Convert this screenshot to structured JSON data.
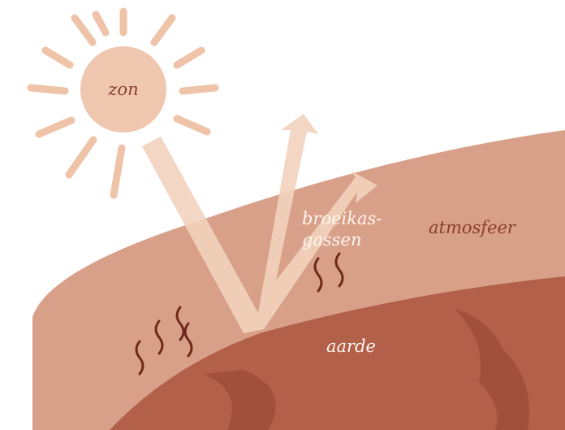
{
  "labels": {
    "sun": "zon",
    "greenhouse_gases": [
      "broeikas-",
      "gassen"
    ],
    "atmosphere": "atmosfeer",
    "earth": "aarde"
  }
}
